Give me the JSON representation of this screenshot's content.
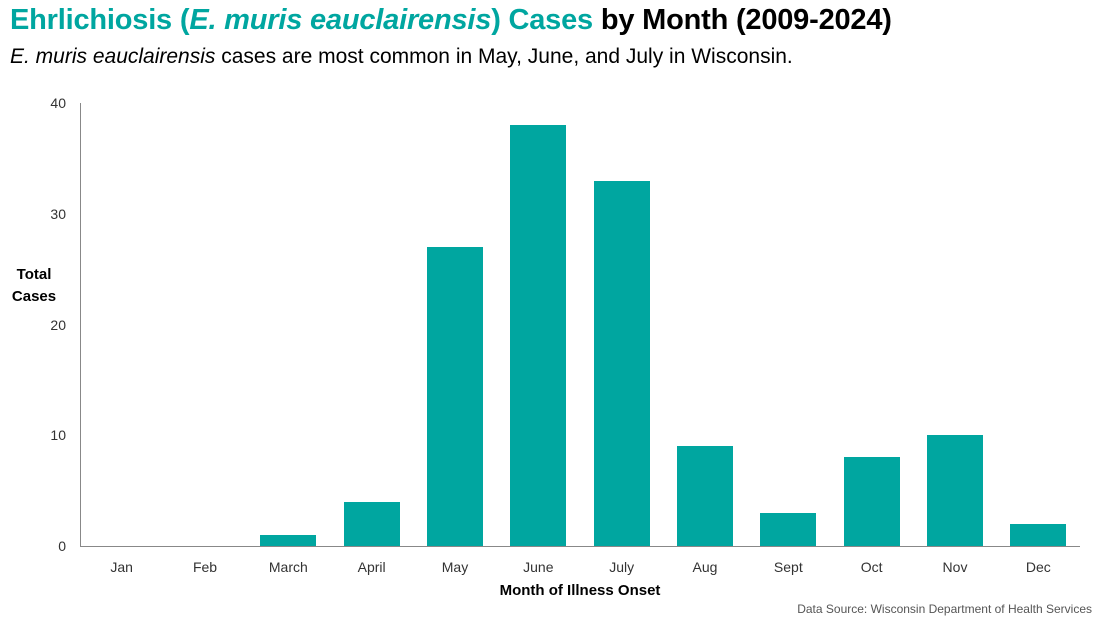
{
  "title": {
    "part1": "Ehrlichiosis (",
    "italic": "E. muris eauclairensis",
    "part2": ") Cases",
    "part3": " by Month (2009-2024)"
  },
  "subtitle": {
    "italic": "E. muris eauclairensis",
    "rest": " cases are most common in May, June, and July in Wisconsin."
  },
  "source": "Data Source: Wisconsin Department of Health Services",
  "colors": {
    "accent": "#00a6a0",
    "axis": "#888888"
  },
  "chart_data": {
    "type": "bar",
    "title": "Ehrlichiosis (E. muris eauclairensis) Cases by Month (2009-2024)",
    "subtitle": "E. muris eauclairensis cases are most common in May, June, and July in Wisconsin.",
    "xlabel": "Month of Illness Onset",
    "ylabel": "Total Cases",
    "ylim": [
      0,
      40
    ],
    "yticks": [
      "0",
      "10",
      "20",
      "30",
      "40"
    ],
    "grid": false,
    "legend": "none",
    "categories": [
      "Jan",
      "Feb",
      "March",
      "April",
      "May",
      "June",
      "July",
      "Aug",
      "Sept",
      "Oct",
      "Nov",
      "Dec"
    ],
    "values": [
      0,
      0,
      1,
      4,
      27,
      38,
      33,
      9,
      3,
      8,
      10,
      2
    ]
  }
}
